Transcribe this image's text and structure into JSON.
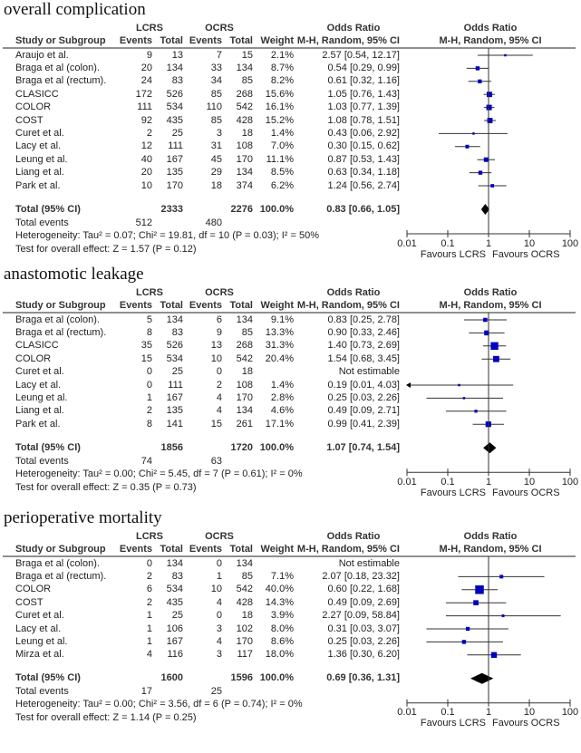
{
  "headers": {
    "group1": "LCRS",
    "group2": "OCRS",
    "study": "Study or Subgroup",
    "events": "Events",
    "total": "Total",
    "weight": "Weight",
    "or_title": "Odds Ratio",
    "or_method": "M-H, Random, 95% CI",
    "total_events_label": "Total events"
  },
  "axis": {
    "ticks": [
      "0.01",
      "0.1",
      "1",
      "10",
      "100"
    ],
    "tick_values": [
      0.01,
      0.1,
      1,
      10,
      100
    ],
    "scale": "log",
    "favours_left": "Favours LCRS",
    "favours_right": "Favours OCRS"
  },
  "colors": {
    "marker": "#0000c0",
    "diamond": "#000000"
  },
  "chart_data": [
    {
      "type": "forest",
      "title": "overall complication",
      "rows": [
        {
          "study": "Araujo et al.",
          "e1": "9",
          "n1": "13",
          "e2": "7",
          "n2": "15",
          "weight": "2.1%",
          "ci": "2.57 [0.54, 12.17]",
          "or": 2.57,
          "lo": 0.54,
          "hi": 12.17,
          "w": 2.1
        },
        {
          "study": "Braga et al (colon).",
          "e1": "20",
          "n1": "134",
          "e2": "33",
          "n2": "134",
          "weight": "8.7%",
          "ci": "0.54 [0.29, 0.99]",
          "or": 0.54,
          "lo": 0.29,
          "hi": 0.99,
          "w": 8.7
        },
        {
          "study": "Braga et al (rectum).",
          "e1": "24",
          "n1": "83",
          "e2": "34",
          "n2": "85",
          "weight": "8.2%",
          "ci": "0.61 [0.32, 1.16]",
          "or": 0.61,
          "lo": 0.32,
          "hi": 1.16,
          "w": 8.2
        },
        {
          "study": "CLASICC",
          "e1": "172",
          "n1": "526",
          "e2": "85",
          "n2": "268",
          "weight": "15.6%",
          "ci": "1.05 [0.76, 1.43]",
          "or": 1.05,
          "lo": 0.76,
          "hi": 1.43,
          "w": 15.6
        },
        {
          "study": "COLOR",
          "e1": "111",
          "n1": "534",
          "e2": "110",
          "n2": "542",
          "weight": "16.1%",
          "ci": "1.03 [0.77, 1.39]",
          "or": 1.03,
          "lo": 0.77,
          "hi": 1.39,
          "w": 16.1
        },
        {
          "study": "COST",
          "e1": "92",
          "n1": "435",
          "e2": "85",
          "n2": "428",
          "weight": "15.2%",
          "ci": "1.08 [0.78, 1.51]",
          "or": 1.08,
          "lo": 0.78,
          "hi": 1.51,
          "w": 15.2
        },
        {
          "study": "Curet et al.",
          "e1": "2",
          "n1": "25",
          "e2": "3",
          "n2": "18",
          "weight": "1.4%",
          "ci": "0.43 [0.06, 2.92]",
          "or": 0.43,
          "lo": 0.06,
          "hi": 2.92,
          "w": 1.4
        },
        {
          "study": "Lacy et al.",
          "e1": "12",
          "n1": "111",
          "e2": "31",
          "n2": "108",
          "weight": "7.0%",
          "ci": "0.30 [0.15, 0.62]",
          "or": 0.3,
          "lo": 0.15,
          "hi": 0.62,
          "w": 7.0
        },
        {
          "study": "Leung et al.",
          "e1": "40",
          "n1": "167",
          "e2": "45",
          "n2": "170",
          "weight": "11.1%",
          "ci": "0.87 [0.53, 1.43]",
          "or": 0.87,
          "lo": 0.53,
          "hi": 1.43,
          "w": 11.1
        },
        {
          "study": "Liang et al.",
          "e1": "20",
          "n1": "135",
          "e2": "29",
          "n2": "134",
          "weight": "8.5%",
          "ci": "0.63 [0.34, 1.18]",
          "or": 0.63,
          "lo": 0.34,
          "hi": 1.18,
          "w": 8.5
        },
        {
          "study": "Park et al.",
          "e1": "10",
          "n1": "170",
          "e2": "18",
          "n2": "374",
          "weight": "6.2%",
          "ci": "1.24 [0.56, 2.74]",
          "or": 1.24,
          "lo": 0.56,
          "hi": 2.74,
          "w": 6.2
        }
      ],
      "total": {
        "label": "Total (95% CI)",
        "n1": "2333",
        "n2": "2276",
        "weight": "100.0%",
        "ci": "0.83 [0.66, 1.05]",
        "or": 0.83,
        "lo": 0.66,
        "hi": 1.05
      },
      "total_events": {
        "e1": "512",
        "e2": "480"
      },
      "heterogeneity": "Heterogeneity: Tau² = 0.07; Chi² = 19.81, df = 10 (P = 0.03); I² = 50%",
      "overall_effect": "Test for overall effect: Z = 1.57 (P = 0.12)"
    },
    {
      "type": "forest",
      "title": "anastomotic leakage",
      "rows": [
        {
          "study": "Braga et al (colon).",
          "e1": "5",
          "n1": "134",
          "e2": "6",
          "n2": "134",
          "weight": "9.1%",
          "ci": "0.83 [0.25, 2.78]",
          "or": 0.83,
          "lo": 0.25,
          "hi": 2.78,
          "w": 9.1
        },
        {
          "study": "Braga et al (rectum).",
          "e1": "8",
          "n1": "83",
          "e2": "9",
          "n2": "85",
          "weight": "13.3%",
          "ci": "0.90 [0.33, 2.46]",
          "or": 0.9,
          "lo": 0.33,
          "hi": 2.46,
          "w": 13.3
        },
        {
          "study": "CLASICC",
          "e1": "35",
          "n1": "526",
          "e2": "13",
          "n2": "268",
          "weight": "31.3%",
          "ci": "1.40 [0.73, 2.69]",
          "or": 1.4,
          "lo": 0.73,
          "hi": 2.69,
          "w": 31.3
        },
        {
          "study": "COLOR",
          "e1": "15",
          "n1": "534",
          "e2": "10",
          "n2": "542",
          "weight": "20.4%",
          "ci": "1.54 [0.68, 3.45]",
          "or": 1.54,
          "lo": 0.68,
          "hi": 3.45,
          "w": 20.4
        },
        {
          "study": "Curet et al.",
          "e1": "0",
          "n1": "25",
          "e2": "0",
          "n2": "18",
          "weight": "",
          "ci": "Not estimable",
          "or": null,
          "lo": null,
          "hi": null,
          "w": 0
        },
        {
          "study": "Lacy et al.",
          "e1": "0",
          "n1": "111",
          "e2": "2",
          "n2": "108",
          "weight": "1.4%",
          "ci": "0.19 [0.01, 4.03]",
          "or": 0.19,
          "lo": 0.01,
          "hi": 4.03,
          "w": 1.4
        },
        {
          "study": "Leung et al.",
          "e1": "1",
          "n1": "167",
          "e2": "4",
          "n2": "170",
          "weight": "2.8%",
          "ci": "0.25 [0.03, 2.26]",
          "or": 0.25,
          "lo": 0.03,
          "hi": 2.26,
          "w": 2.8
        },
        {
          "study": "Liang et al.",
          "e1": "2",
          "n1": "135",
          "e2": "4",
          "n2": "134",
          "weight": "4.6%",
          "ci": "0.49 [0.09, 2.71]",
          "or": 0.49,
          "lo": 0.09,
          "hi": 2.71,
          "w": 4.6
        },
        {
          "study": "Park et al.",
          "e1": "8",
          "n1": "141",
          "e2": "15",
          "n2": "261",
          "weight": "17.1%",
          "ci": "0.99 [0.41, 2.39]",
          "or": 0.99,
          "lo": 0.41,
          "hi": 2.39,
          "w": 17.1
        }
      ],
      "total": {
        "label": "Total (95% CI)",
        "n1": "1856",
        "n2": "1720",
        "weight": "100.0%",
        "ci": "1.07 [0.74, 1.54]",
        "or": 1.07,
        "lo": 0.74,
        "hi": 1.54
      },
      "total_events": {
        "e1": "74",
        "e2": "63"
      },
      "heterogeneity": "Heterogeneity: Tau² = 0.00; Chi² = 5.45, df = 7 (P = 0.61); I² = 0%",
      "overall_effect": "Test for overall effect: Z = 0.35 (P = 0.73)"
    },
    {
      "type": "forest",
      "title": "perioperative mortality",
      "rows": [
        {
          "study": "Braga et al (colon).",
          "e1": "0",
          "n1": "134",
          "e2": "0",
          "n2": "134",
          "weight": "",
          "ci": "Not estimable",
          "or": null,
          "lo": null,
          "hi": null,
          "w": 0
        },
        {
          "study": "Braga et al (rectum).",
          "e1": "2",
          "n1": "83",
          "e2": "1",
          "n2": "85",
          "weight": "7.1%",
          "ci": "2.07 [0.18, 23.32]",
          "or": 2.07,
          "lo": 0.18,
          "hi": 23.32,
          "w": 7.1
        },
        {
          "study": "COLOR",
          "e1": "6",
          "n1": "534",
          "e2": "10",
          "n2": "542",
          "weight": "40.0%",
          "ci": "0.60 [0.22, 1.68]",
          "or": 0.6,
          "lo": 0.22,
          "hi": 1.68,
          "w": 40.0
        },
        {
          "study": "COST",
          "e1": "2",
          "n1": "435",
          "e2": "4",
          "n2": "428",
          "weight": "14.3%",
          "ci": "0.49 [0.09, 2.69]",
          "or": 0.49,
          "lo": 0.09,
          "hi": 2.69,
          "w": 14.3
        },
        {
          "study": "Curet et al.",
          "e1": "1",
          "n1": "25",
          "e2": "0",
          "n2": "18",
          "weight": "3.9%",
          "ci": "2.27 [0.09, 58.84]",
          "or": 2.27,
          "lo": 0.09,
          "hi": 58.84,
          "w": 3.9
        },
        {
          "study": "Lacy et al.",
          "e1": "1",
          "n1": "106",
          "e2": "3",
          "n2": "102",
          "weight": "8.0%",
          "ci": "0.31 [0.03, 3.07]",
          "or": 0.31,
          "lo": 0.03,
          "hi": 3.07,
          "w": 8.0
        },
        {
          "study": "Leung et al.",
          "e1": "1",
          "n1": "167",
          "e2": "4",
          "n2": "170",
          "weight": "8.6%",
          "ci": "0.25 [0.03, 2.26]",
          "or": 0.25,
          "lo": 0.03,
          "hi": 2.26,
          "w": 8.6
        },
        {
          "study": "Mirza et al.",
          "e1": "4",
          "n1": "116",
          "e2": "3",
          "n2": "117",
          "weight": "18.0%",
          "ci": "1.36 [0.30, 6.20]",
          "or": 1.36,
          "lo": 0.3,
          "hi": 6.2,
          "w": 18.0
        }
      ],
      "total": {
        "label": "Total (95% CI)",
        "n1": "1600",
        "n2": "1596",
        "weight": "100.0%",
        "ci": "0.69 [0.36, 1.31]",
        "or": 0.69,
        "lo": 0.36,
        "hi": 1.31
      },
      "total_events": {
        "e1": "17",
        "e2": "25"
      },
      "heterogeneity": "Heterogeneity: Tau² = 0.00; Chi² = 3.56, df = 6 (P = 0.74); I² = 0%",
      "overall_effect": "Test for overall effect: Z = 1.14 (P = 0.25)"
    }
  ]
}
